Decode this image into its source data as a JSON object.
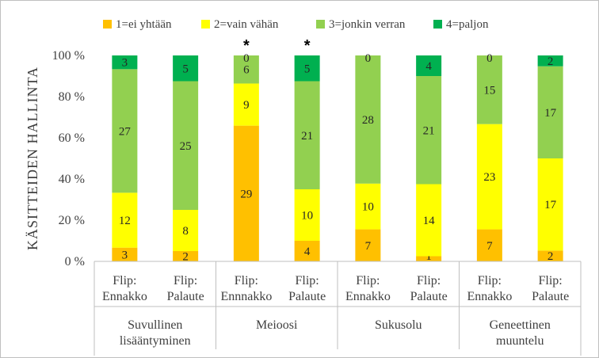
{
  "chart_data": {
    "type": "bar",
    "stacked": true,
    "normalized": true,
    "ylabel": "KÄSITTEIDEN HALLINTA",
    "ylim": [
      0,
      100
    ],
    "yticks": [
      "0 %",
      "20 %",
      "40 %",
      "60 %",
      "80 %",
      "100 %"
    ],
    "legend_position": "top",
    "groups": [
      {
        "label": "Suvullinen lisääntyminen",
        "label_lines": [
          "Suvullinen",
          "lisääntyminen"
        ]
      },
      {
        "label": "Meioosi",
        "label_lines": [
          "Meioosi"
        ]
      },
      {
        "label": "Sukusolu",
        "label_lines": [
          "Sukusolu"
        ]
      },
      {
        "label": "Geneettinen muuntelu",
        "label_lines": [
          "Geneettinen",
          "muuntelu"
        ]
      }
    ],
    "categories": [
      {
        "label": "Flip: Ennakko",
        "label_lines": [
          "Flip:",
          "Ennakko"
        ],
        "group": 0,
        "marker": ""
      },
      {
        "label": "Flip: Palaute",
        "label_lines": [
          "Flip:",
          "Palaute"
        ],
        "group": 0,
        "marker": ""
      },
      {
        "label": "Flip: Ennnakko",
        "label_lines": [
          "Flip:",
          "Ennnakko"
        ],
        "group": 1,
        "marker": "*"
      },
      {
        "label": "Flip: Palaute",
        "label_lines": [
          "Flip:",
          "Palaute"
        ],
        "group": 1,
        "marker": "*"
      },
      {
        "label": "Flip: Ennakko",
        "label_lines": [
          "Flip:",
          "Ennakko"
        ],
        "group": 2,
        "marker": ""
      },
      {
        "label": "Flip: Palaute",
        "label_lines": [
          "Flip:",
          "Palaute"
        ],
        "group": 2,
        "marker": ""
      },
      {
        "label": "Flip: Ennakko",
        "label_lines": [
          "Flip:",
          "Ennakko"
        ],
        "group": 3,
        "marker": ""
      },
      {
        "label": "Flip: Palaute",
        "label_lines": [
          "Flip:",
          "Palaute"
        ],
        "group": 3,
        "marker": ""
      }
    ],
    "series": [
      {
        "name": "1=ei yhtään",
        "color": "#FFC000",
        "values": [
          3,
          2,
          29,
          4,
          7,
          1,
          7,
          2
        ]
      },
      {
        "name": "2=vain vähän",
        "color": "#FFFF00",
        "values": [
          12,
          8,
          9,
          10,
          10,
          14,
          23,
          17
        ]
      },
      {
        "name": "3=jonkin verran",
        "color": "#92D050",
        "values": [
          27,
          25,
          6,
          21,
          28,
          21,
          15,
          17
        ]
      },
      {
        "name": "4=paljon",
        "color": "#00B050",
        "values": [
          3,
          5,
          0,
          5,
          0,
          4,
          0,
          2
        ]
      }
    ]
  }
}
